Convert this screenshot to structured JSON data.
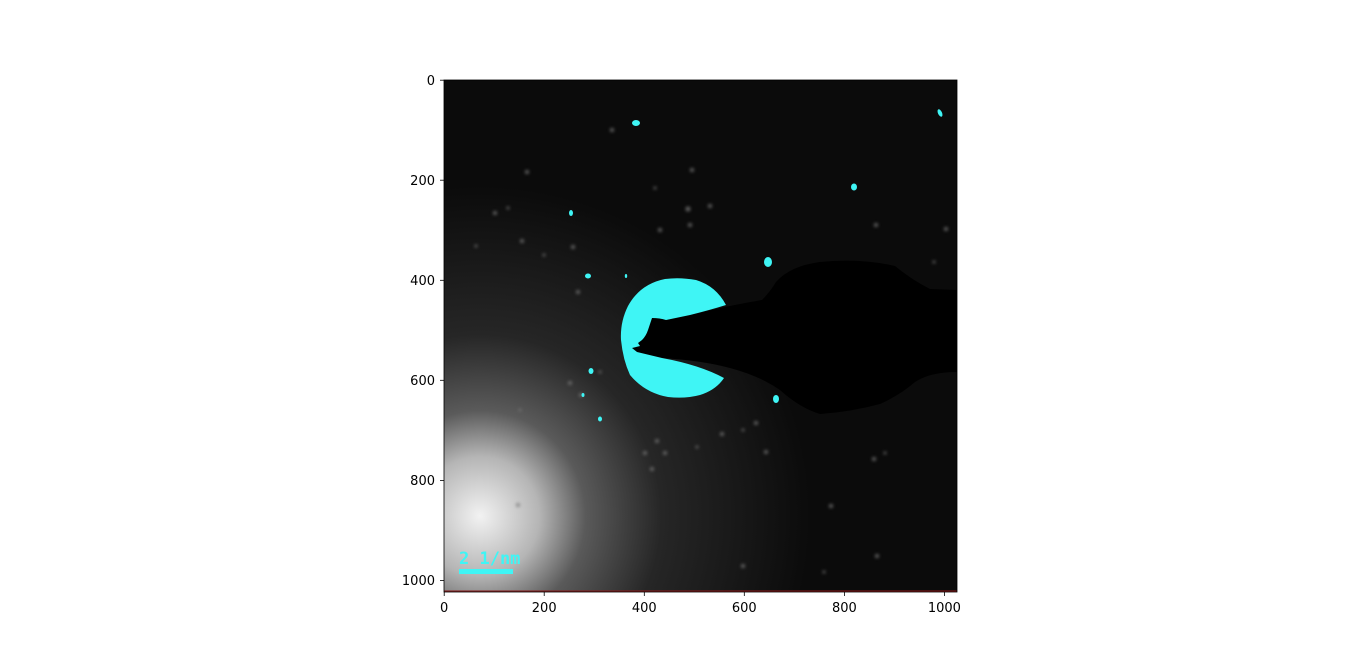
{
  "image": {
    "scale_bar_label": "2 1/nm",
    "highlight_color": "#3ff5f5",
    "background_color": "#0b0b0b",
    "beam_stop_color": "#000000"
  },
  "axes": {
    "x": {
      "ticks": [
        "0",
        "200",
        "400",
        "600",
        "800",
        "1000"
      ],
      "range": [
        0,
        1024
      ]
    },
    "y": {
      "ticks": [
        "0",
        "200",
        "400",
        "600",
        "800",
        "1000"
      ],
      "range": [
        0,
        1024
      ]
    }
  }
}
